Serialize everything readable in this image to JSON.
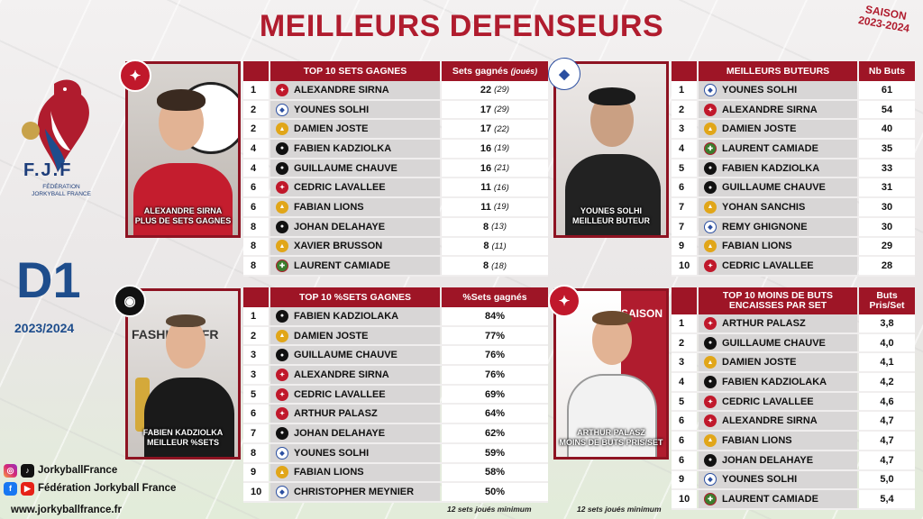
{
  "title": "MEILLEURS DEFENSEURS",
  "season": [
    "SAISON",
    "2023-2024"
  ],
  "brand": {
    "logo_text": "F.J.F",
    "logo_sub": "FÉDÉRATION JORKYBALL FRANCE",
    "division": "D1",
    "division_season": "2023/2024"
  },
  "socials": {
    "instagram_tiktok": "JorkyballFrance",
    "facebook_youtube": "Fédération Jorkyball France",
    "website": "www.jorkyballfrance.fr"
  },
  "photos": {
    "sets": [
      "ALEXANDRE SIRNA",
      "PLUS DE SETS GAGNES"
    ],
    "buteurs": [
      "YOUNES SOLHI",
      "MEILLEUR BUTEUR"
    ],
    "pct": [
      "FABIEN KADZIOLKA",
      "MEILLEUR %SETS"
    ],
    "encaisses": [
      "ARTHUR PALASZ",
      "MOINS DE BUTS PRIS/SET"
    ]
  },
  "tables": {
    "sets": {
      "col_name": "TOP 10 SETS GAGNES",
      "col_val": "Sets gagnés",
      "col_val_sub": "(joués)",
      "rows": [
        {
          "rank": "1",
          "name": "ALEXANDRE SIRNA",
          "club": "red",
          "val": "22",
          "sub": "(29)"
        },
        {
          "rank": "2",
          "name": "YOUNES SOLHI",
          "club": "blue",
          "val": "17",
          "sub": "(29)"
        },
        {
          "rank": "2",
          "name": "DAMIEN JOSTE",
          "club": "gold",
          "val": "17",
          "sub": "(22)"
        },
        {
          "rank": "4",
          "name": "FABIEN KADZIOLKA",
          "club": "black",
          "val": "16",
          "sub": "(19)"
        },
        {
          "rank": "4",
          "name": "GUILLAUME CHAUVE",
          "club": "black",
          "val": "16",
          "sub": "(21)"
        },
        {
          "rank": "6",
          "name": "CEDRIC LAVALLEE",
          "club": "red",
          "val": "11",
          "sub": "(16)"
        },
        {
          "rank": "6",
          "name": "FABIAN LIONS",
          "club": "gold",
          "val": "11",
          "sub": "(19)"
        },
        {
          "rank": "8",
          "name": "JOHAN DELAHAYE",
          "club": "black",
          "val": "8",
          "sub": "(13)"
        },
        {
          "rank": "8",
          "name": "XAVIER BRUSSON",
          "club": "gold",
          "val": "8",
          "sub": "(11)"
        },
        {
          "rank": "8",
          "name": "LAURENT CAMIADE",
          "club": "green",
          "val": "8",
          "sub": "(18)"
        }
      ]
    },
    "buteurs": {
      "col_name": "MEILLEURS BUTEURS",
      "col_val": "Nb Buts",
      "rows": [
        {
          "rank": "1",
          "name": "YOUNES SOLHI",
          "club": "blue",
          "val": "61"
        },
        {
          "rank": "2",
          "name": "ALEXANDRE SIRNA",
          "club": "red",
          "val": "54"
        },
        {
          "rank": "3",
          "name": "DAMIEN JOSTE",
          "club": "gold",
          "val": "40"
        },
        {
          "rank": "4",
          "name": "LAURENT CAMIADE",
          "club": "green",
          "val": "35"
        },
        {
          "rank": "5",
          "name": "FABIEN KADZIOLKA",
          "club": "black",
          "val": "33"
        },
        {
          "rank": "6",
          "name": "GUILLAUME CHAUVE",
          "club": "black",
          "val": "31"
        },
        {
          "rank": "7",
          "name": "YOHAN SANCHIS",
          "club": "gold",
          "val": "30"
        },
        {
          "rank": "7",
          "name": "REMY GHIGNONE",
          "club": "blue",
          "val": "30"
        },
        {
          "rank": "9",
          "name": "FABIAN LIONS",
          "club": "gold",
          "val": "29"
        },
        {
          "rank": "10",
          "name": "CEDRIC LAVALLEE",
          "club": "red",
          "val": "28"
        }
      ]
    },
    "pct": {
      "col_name": "TOP 10 %SETS GAGNES",
      "col_val": "%Sets gagnés",
      "rows": [
        {
          "rank": "1",
          "name": "FABIEN KADZIOLAKA",
          "club": "black",
          "val": "84%"
        },
        {
          "rank": "2",
          "name": "DAMIEN JOSTE",
          "club": "gold",
          "val": "77%"
        },
        {
          "rank": "3",
          "name": "GUILLAUME CHAUVE",
          "club": "black",
          "val": "76%"
        },
        {
          "rank": "3",
          "name": "ALEXANDRE SIRNA",
          "club": "red",
          "val": "76%"
        },
        {
          "rank": "5",
          "name": "CEDRIC LAVALLEE",
          "club": "red",
          "val": "69%"
        },
        {
          "rank": "6",
          "name": "ARTHUR PALASZ",
          "club": "red",
          "val": "64%"
        },
        {
          "rank": "7",
          "name": "JOHAN DELAHAYE",
          "club": "black",
          "val": "62%"
        },
        {
          "rank": "8",
          "name": "YOUNES SOLHI",
          "club": "blue",
          "val": "59%"
        },
        {
          "rank": "9",
          "name": "FABIAN LIONS",
          "club": "gold",
          "val": "58%"
        },
        {
          "rank": "10",
          "name": "CHRISTOPHER MEYNIER",
          "club": "blue",
          "val": "50%"
        }
      ],
      "note": "12 sets joués minimum"
    },
    "encaisses": {
      "col_name": "TOP 10 MOINS DE BUTS ENCAISSES PAR SET",
      "col_val": "Buts Pris/Set",
      "rows": [
        {
          "rank": "1",
          "name": "ARTHUR PALASZ",
          "club": "red",
          "val": "3,8"
        },
        {
          "rank": "2",
          "name": "GUILLAUME CHAUVE",
          "club": "black",
          "val": "4,0"
        },
        {
          "rank": "3",
          "name": "DAMIEN JOSTE",
          "club": "gold",
          "val": "4,1"
        },
        {
          "rank": "4",
          "name": "FABIEN KADZIOLAKA",
          "club": "black",
          "val": "4,2"
        },
        {
          "rank": "5",
          "name": "CEDRIC LAVALLEE",
          "club": "red",
          "val": "4,6"
        },
        {
          "rank": "6",
          "name": "ALEXANDRE SIRNA",
          "club": "red",
          "val": "4,7"
        },
        {
          "rank": "6",
          "name": "FABIAN LIONS",
          "club": "gold",
          "val": "4,7"
        },
        {
          "rank": "6",
          "name": "JOHAN DELAHAYE",
          "club": "black",
          "val": "4,7"
        },
        {
          "rank": "9",
          "name": "YOUNES SOLHI",
          "club": "blue",
          "val": "5,0"
        },
        {
          "rank": "10",
          "name": "LAURENT CAMIADE",
          "club": "green",
          "val": "5,4"
        }
      ],
      "note": "12 sets joués minimum"
    }
  },
  "colors": {
    "accent": "#b01c2e",
    "header": "#9e1526",
    "navy": "#1e4d8c"
  }
}
